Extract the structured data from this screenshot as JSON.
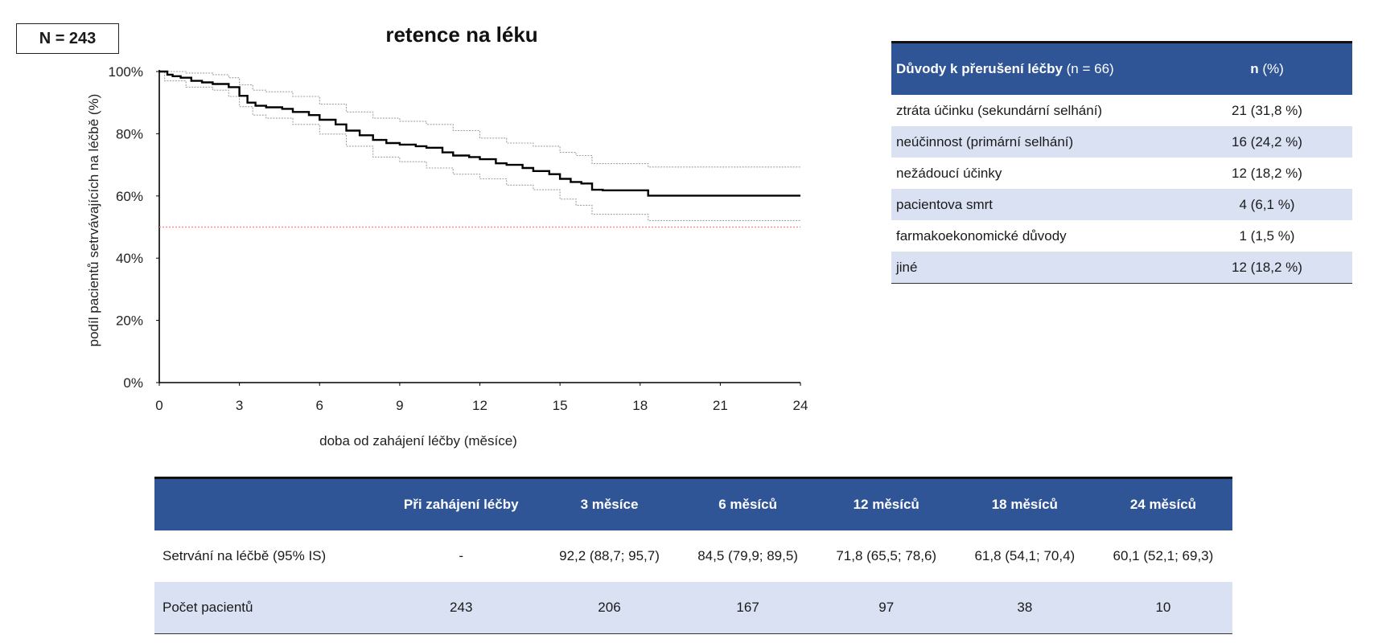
{
  "n_label": "N = 243",
  "chart_data": {
    "type": "line",
    "title": "retence na léku",
    "xlabel": "doba od zahájení léčby (měsíce)",
    "ylabel": "podíl pacientů setrvávajících na léčbě (%)",
    "xlim": [
      0,
      24
    ],
    "ylim": [
      0,
      100
    ],
    "x_ticks": [
      0,
      3,
      6,
      9,
      12,
      15,
      18,
      21,
      24
    ],
    "y_ticks": [
      0,
      20,
      40,
      60,
      80,
      100
    ],
    "y_tick_suffix": "%",
    "grid": false,
    "reference_line": {
      "y": 50,
      "color": "#ff7f7f"
    },
    "series": [
      {
        "role": "estimate",
        "color": "#000000",
        "x": [
          0,
          0.3,
          0.5,
          0.8,
          1.2,
          1.6,
          2.0,
          2.6,
          3.0,
          3.3,
          3.6,
          4.0,
          4.6,
          5.0,
          5.6,
          6.0,
          6.6,
          7.0,
          7.5,
          8.0,
          8.5,
          9.0,
          9.6,
          10.0,
          10.6,
          11.0,
          11.6,
          12.0,
          12.6,
          13.0,
          13.6,
          14.0,
          14.6,
          15.0,
          15.4,
          15.8,
          16.2,
          16.6,
          17.2,
          18.0,
          18.3,
          20.0,
          22.0,
          24.0
        ],
        "y": [
          100,
          99,
          98.5,
          98,
          97,
          96.5,
          96,
          95,
          92.2,
          90,
          89,
          88.5,
          88,
          87,
          86,
          84.5,
          83,
          81,
          79.5,
          78,
          77,
          76.5,
          76,
          75.5,
          74,
          73,
          72.5,
          71.8,
          70.5,
          70,
          69,
          68,
          67,
          65.5,
          64.5,
          64,
          62,
          61.8,
          61.8,
          61.8,
          60.1,
          60.1,
          60.1,
          60.1
        ]
      },
      {
        "role": "ci-upper",
        "color": "#9aa3ad",
        "x": [
          0,
          1,
          2,
          2.6,
          3.0,
          3.5,
          4.0,
          5.0,
          6.0,
          7.0,
          8.0,
          9.0,
          10.0,
          11.0,
          12.0,
          13.0,
          14.0,
          15.0,
          15.6,
          16.2,
          17.0,
          18.0,
          18.3,
          24.0
        ],
        "y": [
          100,
          99.5,
          99,
          98,
          95.7,
          94,
          93.5,
          92,
          89.5,
          87,
          85,
          84,
          83,
          81,
          78.6,
          77,
          76,
          74,
          73,
          70.4,
          70.4,
          70.4,
          69.3,
          69.3
        ]
      },
      {
        "role": "ci-lower",
        "color": "#9aa3ad",
        "x": [
          0,
          0.2,
          1,
          2,
          2.6,
          3.0,
          3.5,
          4.0,
          5.0,
          6.0,
          7.0,
          8.0,
          9.0,
          10.0,
          11.0,
          12.0,
          13.0,
          14.0,
          15.0,
          15.6,
          16.2,
          17.0,
          18.0,
          18.3,
          24.0
        ],
        "y": [
          100,
          97,
          95,
          94,
          92,
          88.7,
          86,
          85,
          83,
          79.9,
          76,
          72.5,
          71,
          69,
          67,
          65.5,
          63.5,
          62,
          59,
          57,
          54.1,
          54.1,
          54.1,
          52.1,
          52.1
        ]
      }
    ]
  },
  "reasons_table": {
    "header_title_bold": "Důvody k přerušení léčby",
    "header_title_rest": " (n = 66)",
    "header_n_bold": "n",
    "header_n_rest": " (%)",
    "rows": [
      {
        "label": "ztráta účinku (sekundární selhání)",
        "value": "21 (31,8 %)"
      },
      {
        "label": "neúčinnost (primární selhání)",
        "value": "16 (24,2 %)"
      },
      {
        "label": "nežádoucí účinky",
        "value": "12 (18,2 %)"
      },
      {
        "label": "pacientova smrt",
        "value": "4 (6,1 %)"
      },
      {
        "label": "farmakoekonomické důvody",
        "value": "1 (1,5 %)"
      },
      {
        "label": "jiné",
        "value": "12 (18,2 %)"
      }
    ]
  },
  "retention_table": {
    "columns": [
      "",
      "Při zahájení léčby",
      "3 měsíce",
      "6 měsíců",
      "12 měsíců",
      "18 měsíců",
      "24 měsíců"
    ],
    "rows": [
      {
        "label": "Setrvání na léčbě (95% IS)",
        "cells": [
          "-",
          "92,2 (88,7; 95,7)",
          "84,5 (79,9; 89,5)",
          "71,8 (65,5; 78,6)",
          "61,8 (54,1; 70,4)",
          "60,1 (52,1; 69,3)"
        ]
      },
      {
        "label": "Počet pacientů",
        "cells": [
          "243",
          "206",
          "167",
          "97",
          "38",
          "10"
        ]
      }
    ]
  },
  "colors": {
    "header_bg": "#2f5597",
    "row_shade": "#d9e1f2",
    "estimate_line": "#000000",
    "ci_line": "#9aa3ad",
    "reference_line": "#ff7f7f"
  }
}
